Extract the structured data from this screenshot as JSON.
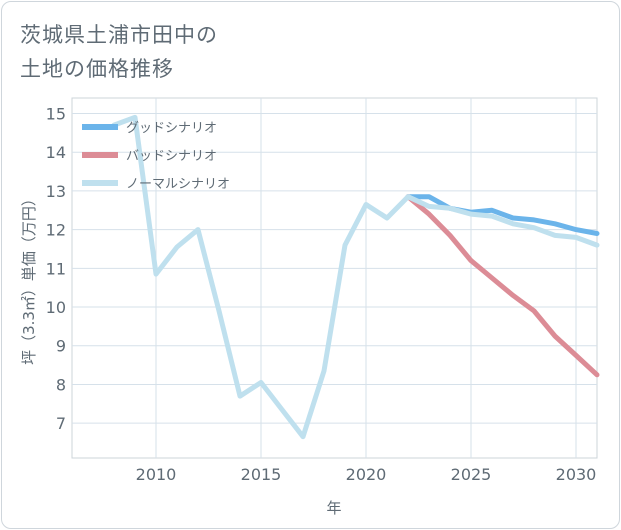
{
  "title": {
    "line1": "茨城県土浦市田中の",
    "line2": "土地の価格推移"
  },
  "chart_data": {
    "type": "line",
    "title": "茨城県土浦市田中の土地の価格推移",
    "xlabel": "年",
    "ylabel": "坪（3.3㎡）単価（万円）",
    "xlim": [
      2006,
      2031
    ],
    "ylim": [
      6.1,
      15.4
    ],
    "xticks": [
      2010,
      2015,
      2020,
      2025,
      2030
    ],
    "yticks": [
      7,
      8,
      9,
      10,
      11,
      12,
      13,
      14,
      15
    ],
    "grid": true,
    "legend_position": "top-left",
    "series": [
      {
        "name": "グッドシナリオ",
        "color": "#6bb4ea",
        "x": [
          2022,
          2023,
          2024,
          2025,
          2026,
          2027,
          2028,
          2029,
          2030,
          2031
        ],
        "values": [
          12.85,
          12.85,
          12.55,
          12.45,
          12.5,
          12.3,
          12.25,
          12.15,
          12.0,
          11.9
        ]
      },
      {
        "name": "バッドシナリオ",
        "color": "#dc8c96",
        "x": [
          2022,
          2023,
          2024,
          2025,
          2026,
          2027,
          2028,
          2029,
          2030,
          2031
        ],
        "values": [
          12.85,
          12.4,
          11.85,
          11.2,
          10.75,
          10.3,
          9.9,
          9.25,
          8.75,
          8.25
        ]
      },
      {
        "name": "ノーマルシナリオ",
        "color": "#bfe0ee",
        "x": [
          2008,
          2009,
          2010,
          2011,
          2012,
          2013,
          2014,
          2015,
          2016,
          2017,
          2018,
          2019,
          2020,
          2021,
          2022,
          2023,
          2024,
          2025,
          2026,
          2027,
          2028,
          2029,
          2030,
          2031
        ],
        "values": [
          14.7,
          14.9,
          10.85,
          11.55,
          12.0,
          9.9,
          7.7,
          8.05,
          7.35,
          6.65,
          8.35,
          11.6,
          12.65,
          12.3,
          12.85,
          12.6,
          12.55,
          12.4,
          12.35,
          12.15,
          12.05,
          11.85,
          11.8,
          11.6
        ]
      }
    ]
  }
}
